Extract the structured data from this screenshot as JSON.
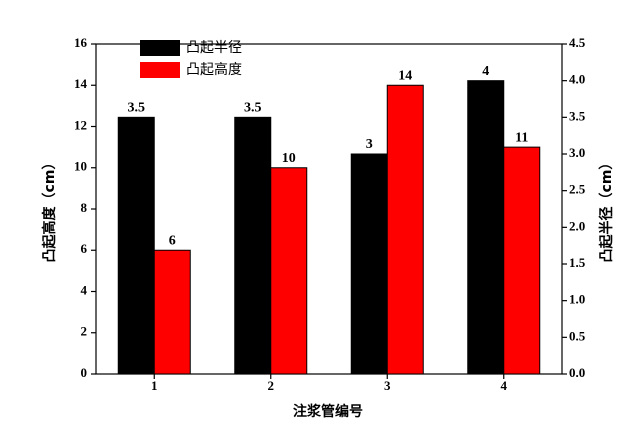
{
  "chart_data": {
    "type": "bar",
    "categories": [
      "1",
      "2",
      "3",
      "4"
    ],
    "x_label": "注浆管编号",
    "y_label": "凸起高度（cm）",
    "y2_label": "凸起半径（cm）",
    "series": [
      {
        "name": "凸起半径",
        "color": "#000000",
        "values": [
          3.5,
          3.5,
          3,
          4
        ],
        "axis": "y2"
      },
      {
        "name": "凸起高度",
        "color": "#ff0000",
        "values": [
          6,
          10,
          14,
          11
        ]
      }
    ],
    "ylim": [
      0,
      16
    ],
    "yticks": [
      0,
      2,
      4,
      6,
      8,
      10,
      12,
      14,
      16
    ],
    "y2lim": [
      0,
      4.5
    ],
    "y2ticks": [
      {
        "value": 0,
        "label": "0.0"
      },
      {
        "value": 0.5,
        "label": "0.5"
      },
      {
        "value": 1,
        "label": "1.0"
      },
      {
        "value": 1.5,
        "label": "1.5"
      },
      {
        "value": 2,
        "label": "2.0"
      },
      {
        "value": 2.5,
        "label": "2.5"
      },
      {
        "value": 3,
        "label": "3.0"
      },
      {
        "value": 3.5,
        "label": "3.5"
      },
      {
        "value": 4,
        "label": "4.0"
      },
      {
        "value": 4.5,
        "label": "4.5"
      }
    ],
    "legend": "upper left"
  }
}
